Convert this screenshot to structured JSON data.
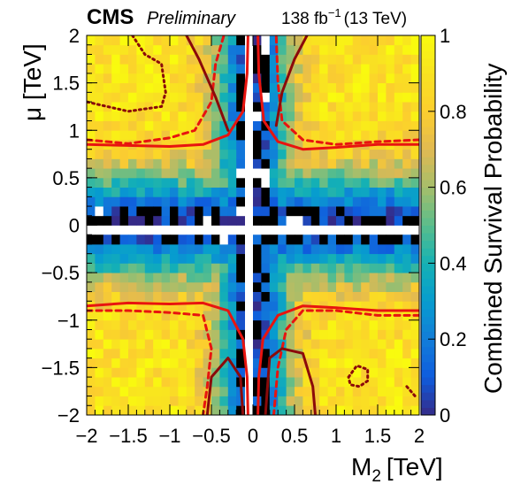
{
  "header": {
    "experiment": "CMS",
    "status": "Preliminary",
    "luminosity_value": "138 fb",
    "luminosity_exponent": "−1",
    "energy": "(13 TeV)"
  },
  "chart_data": {
    "type": "heatmap",
    "x_axis": {
      "label_main": "M",
      "label_sub": "2",
      "label_unit": "[TeV]",
      "range": [
        -2,
        2
      ],
      "ticks": [
        -2,
        -1.5,
        -1,
        -0.5,
        0,
        0.5,
        1,
        1.5,
        2
      ],
      "tick_labels": [
        "−2",
        "−1.5",
        "−1",
        "−0.5",
        "0",
        "0.5",
        "1",
        "1.5",
        "2"
      ]
    },
    "y_axis": {
      "label": "μ [TeV]",
      "range": [
        -2,
        2
      ],
      "ticks": [
        -2,
        -1.5,
        -1,
        -0.5,
        0,
        0.5,
        1,
        1.5,
        2
      ],
      "tick_labels": [
        "−2",
        "−1.5",
        "−1",
        "−0.5",
        "0",
        "0.5",
        "1",
        "1.5",
        "2"
      ]
    },
    "z_axis": {
      "label": "Combined Survival Probability",
      "range": [
        0,
        1
      ],
      "ticks": [
        0,
        0.2,
        0.4,
        0.6,
        0.8,
        1
      ],
      "tick_labels": [
        "0",
        "0.2",
        "0.4",
        "0.6",
        "0.8",
        "1"
      ]
    },
    "grid": false,
    "colormap": "parula",
    "colors": {
      "contour_red": "#e8140f",
      "contour_dark": "#8b0a0a"
    },
    "empty_regions": [
      {
        "axis": "x",
        "from": -0.05,
        "to": 0.05
      },
      {
        "axis": "y",
        "from": -0.05,
        "to": 0.05
      }
    ],
    "contours": [
      {
        "style": "solid",
        "color": "#e8140f",
        "points": [
          [
            -2.0,
            0.85
          ],
          [
            -1.5,
            0.84
          ],
          [
            -1.0,
            0.83
          ],
          [
            -0.6,
            0.85
          ],
          [
            -0.3,
            0.95
          ],
          [
            -0.12,
            1.2
          ],
          [
            -0.07,
            1.6
          ],
          [
            -0.06,
            2.0
          ]
        ]
      },
      {
        "style": "solid",
        "color": "#e8140f",
        "points": [
          [
            2.0,
            0.85
          ],
          [
            1.5,
            0.85
          ],
          [
            1.0,
            0.82
          ],
          [
            0.6,
            0.8
          ],
          [
            0.3,
            0.88
          ],
          [
            0.13,
            1.1
          ],
          [
            0.07,
            1.6
          ],
          [
            0.06,
            2.0
          ]
        ]
      },
      {
        "style": "solid",
        "color": "#e8140f",
        "points": [
          [
            -2.0,
            -0.85
          ],
          [
            -1.5,
            -0.82
          ],
          [
            -1.0,
            -0.83
          ],
          [
            -0.6,
            -0.82
          ],
          [
            -0.3,
            -0.9
          ],
          [
            -0.12,
            -1.2
          ],
          [
            -0.07,
            -1.6
          ],
          [
            -0.06,
            -2.0
          ]
        ]
      },
      {
        "style": "solid",
        "color": "#e8140f",
        "points": [
          [
            2.0,
            -0.9
          ],
          [
            1.5,
            -0.9
          ],
          [
            1.0,
            -0.87
          ],
          [
            0.6,
            -0.85
          ],
          [
            0.3,
            -0.95
          ],
          [
            0.12,
            -1.2
          ],
          [
            0.07,
            -1.6
          ],
          [
            0.06,
            -2.0
          ]
        ]
      },
      {
        "style": "dashed",
        "color": "#e8140f",
        "points": [
          [
            -2.0,
            0.9
          ],
          [
            -1.5,
            0.86
          ],
          [
            -1.0,
            0.92
          ],
          [
            -0.7,
            1.0
          ],
          [
            -0.5,
            1.3
          ],
          [
            -0.45,
            1.7
          ],
          [
            -0.35,
            2.0
          ]
        ]
      },
      {
        "style": "dashed",
        "color": "#e8140f",
        "points": [
          [
            2.0,
            0.9
          ],
          [
            1.5,
            0.88
          ],
          [
            1.0,
            0.85
          ],
          [
            0.6,
            0.9
          ],
          [
            0.35,
            1.1
          ],
          [
            0.3,
            1.5
          ],
          [
            0.28,
            2.0
          ]
        ]
      },
      {
        "style": "dashed",
        "color": "#e8140f",
        "points": [
          [
            -2.0,
            -0.9
          ],
          [
            -1.5,
            -0.9
          ],
          [
            -1.0,
            -0.92
          ],
          [
            -0.6,
            -0.95
          ],
          [
            -0.5,
            -1.3
          ],
          [
            -0.55,
            -1.7
          ],
          [
            -0.6,
            -2.0
          ]
        ]
      },
      {
        "style": "dashed",
        "color": "#e8140f",
        "points": [
          [
            2.0,
            -0.95
          ],
          [
            1.5,
            -0.95
          ],
          [
            1.0,
            -0.9
          ],
          [
            0.6,
            -0.9
          ],
          [
            0.4,
            -1.1
          ],
          [
            0.3,
            -1.5
          ],
          [
            0.25,
            -2.0
          ]
        ]
      },
      {
        "style": "solid",
        "color": "#8b0a0a",
        "points": [
          [
            -0.8,
            2.0
          ],
          [
            -0.65,
            1.75
          ],
          [
            -0.45,
            1.35
          ],
          [
            -0.3,
            1.0
          ]
        ]
      },
      {
        "style": "solid",
        "color": "#8b0a0a",
        "points": [
          [
            0.28,
            1.05
          ],
          [
            0.35,
            1.4
          ],
          [
            0.5,
            1.75
          ],
          [
            0.65,
            2.0
          ]
        ]
      },
      {
        "style": "solid",
        "color": "#8b0a0a",
        "points": [
          [
            -0.55,
            -2.0
          ],
          [
            -0.5,
            -1.6
          ],
          [
            -0.3,
            -1.4
          ],
          [
            -0.15,
            -1.6
          ],
          [
            -0.12,
            -2.0
          ]
        ]
      },
      {
        "style": "solid",
        "color": "#8b0a0a",
        "points": [
          [
            0.15,
            -2.0
          ],
          [
            0.2,
            -1.4
          ],
          [
            0.35,
            -1.3
          ],
          [
            0.6,
            -1.35
          ],
          [
            0.72,
            -1.7
          ],
          [
            0.75,
            -2.0
          ]
        ]
      },
      {
        "style": "dotted",
        "color": "#8b0a0a",
        "points": [
          [
            -1.45,
            2.0
          ],
          [
            -1.3,
            1.8
          ],
          [
            -1.1,
            1.7
          ],
          [
            -1.05,
            1.4
          ],
          [
            -1.1,
            1.25
          ],
          [
            -1.5,
            1.2
          ],
          [
            -2.0,
            1.3
          ]
        ]
      },
      {
        "style": "dotted",
        "color": "#8b0a0a",
        "points": [
          [
            1.15,
            -1.6
          ],
          [
            1.25,
            -1.48
          ],
          [
            1.38,
            -1.52
          ],
          [
            1.38,
            -1.64
          ],
          [
            1.28,
            -1.7
          ],
          [
            1.17,
            -1.68
          ],
          [
            1.15,
            -1.6
          ]
        ]
      },
      {
        "style": "dotted",
        "color": "#8b0a0a",
        "points": [
          [
            1.85,
            -1.7
          ],
          [
            1.9,
            -1.75
          ],
          [
            1.95,
            -1.8
          ]
        ]
      }
    ]
  }
}
